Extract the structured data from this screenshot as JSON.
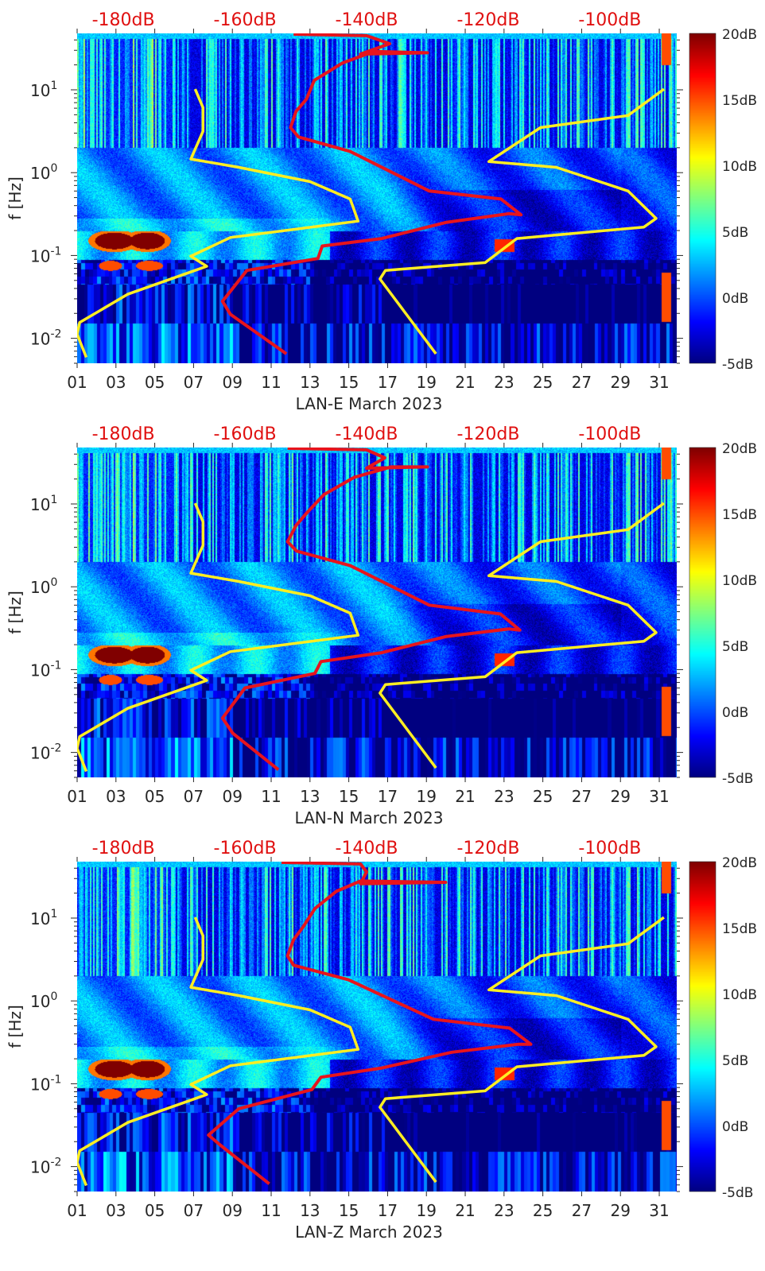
{
  "chart_data": {
    "type": "heatmap",
    "colormap": "jet",
    "color_limits_db": [
      -5,
      20
    ],
    "colorbar_ticks": [
      "20dB",
      "15dB",
      "10dB",
      "5dB",
      "0dB",
      "-5dB"
    ],
    "colorbar_values": [
      20,
      15,
      10,
      5,
      0,
      -5
    ],
    "x_day_range": [
      1,
      31.9
    ],
    "x_ticks": [
      "01",
      "03",
      "05",
      "07",
      "09",
      "11",
      "13",
      "15",
      "17",
      "19",
      "21",
      "23",
      "25",
      "27",
      "29",
      "31"
    ],
    "x_tick_values": [
      1,
      3,
      5,
      7,
      9,
      11,
      13,
      15,
      17,
      19,
      21,
      23,
      25,
      27,
      29,
      31
    ],
    "y_scale": "log",
    "y_range_hz": [
      0.005,
      48
    ],
    "y_label": "f [Hz]",
    "y_tick_values": [
      10,
      1,
      0.1,
      0.01
    ],
    "y_tick_base": "10",
    "y_tick_exponents": [
      "1",
      "0",
      "-1",
      "-2"
    ],
    "top_axis_db_range": [
      -187.6,
      -89
    ],
    "top_axis_labels": [
      "-180dB",
      "-160dB",
      "-140dB",
      "-120dB",
      "-100dB"
    ],
    "top_axis_values": [
      -180,
      -160,
      -140,
      -120,
      -100
    ],
    "line_colors": {
      "station_psd": "#e8141c",
      "noise_model": "#ffee22"
    },
    "panels": [
      {
        "xlabel": "LAN-E March 2023",
        "red_curve": [
          [
            -153.2,
            0.0065
          ],
          [
            -162.4,
            0.0195
          ],
          [
            -163.7,
            0.028
          ],
          [
            -159.7,
            0.066
          ],
          [
            -148,
            0.092
          ],
          [
            -147.3,
            0.13
          ],
          [
            -137.5,
            0.16
          ],
          [
            -127,
            0.25
          ],
          [
            -116.6,
            0.32
          ],
          [
            -114.6,
            0.31
          ],
          [
            -117.9,
            0.48
          ],
          [
            -129.7,
            0.6
          ],
          [
            -142.7,
            1.8
          ],
          [
            -151.2,
            2.7
          ],
          [
            -152.5,
            3.5
          ],
          [
            -151.6,
            5.5
          ],
          [
            -149.9,
            7.7
          ],
          [
            -148.6,
            13
          ],
          [
            -144,
            21
          ],
          [
            -138.8,
            29
          ],
          [
            -130,
            28
          ],
          [
            -141,
            27
          ],
          [
            -136.2,
            36
          ],
          [
            -140,
            45
          ],
          [
            -152,
            47
          ]
        ],
        "low_noise_model": [
          [
            -186.1,
            0.0059
          ],
          [
            -187.6,
            0.0112
          ],
          [
            -187.2,
            0.0155
          ],
          [
            -179.3,
            0.034
          ],
          [
            -166.3,
            0.074
          ],
          [
            -168.9,
            0.098
          ],
          [
            -162.4,
            0.165
          ],
          [
            -141.4,
            0.26
          ],
          [
            -142.7,
            0.48
          ],
          [
            -149.3,
            0.78
          ],
          [
            -161,
            1.16
          ],
          [
            -168.9,
            1.46
          ],
          [
            -166.9,
            3.16
          ],
          [
            -166.9,
            6.1
          ],
          [
            -168.2,
            10.2
          ]
        ],
        "high_noise_model": [
          [
            -128.6,
            0.0065
          ],
          [
            -137.8,
            0.052
          ],
          [
            -136.9,
            0.066
          ],
          [
            -120.5,
            0.082
          ],
          [
            -115.3,
            0.16
          ],
          [
            -94.4,
            0.22
          ],
          [
            -92.4,
            0.28
          ],
          [
            -97,
            0.6
          ],
          [
            -108.8,
            1.16
          ],
          [
            -119.9,
            1.36
          ],
          [
            -111.4,
            3.5
          ],
          [
            -97,
            4.9
          ],
          [
            -91.1,
            10.2
          ]
        ]
      },
      {
        "xlabel": "LAN-N March 2023",
        "red_curve": [
          [
            -154.5,
            0.0062
          ],
          [
            -162,
            0.017
          ],
          [
            -163.7,
            0.026
          ],
          [
            -160,
            0.06
          ],
          [
            -148.5,
            0.09
          ],
          [
            -147.5,
            0.125
          ],
          [
            -137.5,
            0.16
          ],
          [
            -127,
            0.25
          ],
          [
            -116.6,
            0.31
          ],
          [
            -114.8,
            0.3
          ],
          [
            -118,
            0.47
          ],
          [
            -129.7,
            0.6
          ],
          [
            -142.7,
            1.8
          ],
          [
            -151.5,
            2.7
          ],
          [
            -153,
            3.5
          ],
          [
            -151.6,
            5.5
          ],
          [
            -149.9,
            7.7
          ],
          [
            -147,
            13
          ],
          [
            -142,
            21
          ],
          [
            -136,
            28
          ],
          [
            -130,
            28
          ],
          [
            -140,
            27
          ],
          [
            -137,
            36
          ],
          [
            -140,
            45
          ],
          [
            -153,
            47
          ]
        ],
        "low_noise_model": [
          [
            -186.1,
            0.0059
          ],
          [
            -187.6,
            0.0112
          ],
          [
            -187.2,
            0.0155
          ],
          [
            -179.3,
            0.034
          ],
          [
            -166.3,
            0.074
          ],
          [
            -168.9,
            0.098
          ],
          [
            -162.4,
            0.165
          ],
          [
            -141.4,
            0.26
          ],
          [
            -142.7,
            0.48
          ],
          [
            -149.3,
            0.78
          ],
          [
            -161,
            1.16
          ],
          [
            -168.9,
            1.46
          ],
          [
            -166.9,
            3.16
          ],
          [
            -166.9,
            6.1
          ],
          [
            -168.2,
            10.2
          ]
        ],
        "high_noise_model": [
          [
            -128.6,
            0.0065
          ],
          [
            -137.8,
            0.052
          ],
          [
            -136.9,
            0.066
          ],
          [
            -120.5,
            0.082
          ],
          [
            -115.3,
            0.16
          ],
          [
            -94.4,
            0.22
          ],
          [
            -92.4,
            0.28
          ],
          [
            -97,
            0.6
          ],
          [
            -108.8,
            1.16
          ],
          [
            -119.9,
            1.36
          ],
          [
            -111.4,
            3.5
          ],
          [
            -97,
            4.9
          ],
          [
            -91.1,
            10.2
          ]
        ]
      },
      {
        "xlabel": "LAN-Z March 2023",
        "red_curve": [
          [
            -156,
            0.0062
          ],
          [
            -164,
            0.018
          ],
          [
            -166,
            0.024
          ],
          [
            -161,
            0.05
          ],
          [
            -149,
            0.085
          ],
          [
            -147.5,
            0.12
          ],
          [
            -137.5,
            0.155
          ],
          [
            -126,
            0.24
          ],
          [
            -115,
            0.3
          ],
          [
            -113,
            0.3
          ],
          [
            -116.5,
            0.47
          ],
          [
            -129,
            0.6
          ],
          [
            -143,
            1.8
          ],
          [
            -152,
            2.7
          ],
          [
            -153,
            3.5
          ],
          [
            -152,
            5.5
          ],
          [
            -150.5,
            7.7
          ],
          [
            -148.5,
            13
          ],
          [
            -145,
            21
          ],
          [
            -141,
            28
          ],
          [
            -127,
            27
          ],
          [
            -141,
            26
          ],
          [
            -140,
            36
          ],
          [
            -141,
            45
          ],
          [
            -154,
            47
          ]
        ],
        "low_noise_model": [
          [
            -186.1,
            0.0059
          ],
          [
            -187.6,
            0.0112
          ],
          [
            -187.2,
            0.0155
          ],
          [
            -179.3,
            0.034
          ],
          [
            -166.3,
            0.074
          ],
          [
            -168.9,
            0.098
          ],
          [
            -162.4,
            0.165
          ],
          [
            -141.4,
            0.26
          ],
          [
            -142.7,
            0.48
          ],
          [
            -149.3,
            0.78
          ],
          [
            -161,
            1.16
          ],
          [
            -168.9,
            1.46
          ],
          [
            -166.9,
            3.16
          ],
          [
            -166.9,
            6.1
          ],
          [
            -168.2,
            10.2
          ]
        ],
        "high_noise_model": [
          [
            -128.6,
            0.0065
          ],
          [
            -137.8,
            0.052
          ],
          [
            -136.9,
            0.066
          ],
          [
            -120.5,
            0.082
          ],
          [
            -115.3,
            0.16
          ],
          [
            -94.4,
            0.22
          ],
          [
            -92.4,
            0.28
          ],
          [
            -97,
            0.6
          ],
          [
            -108.8,
            1.16
          ],
          [
            -119.9,
            1.36
          ],
          [
            -111.4,
            3.5
          ],
          [
            -97,
            4.9
          ],
          [
            -91.1,
            10.2
          ]
        ]
      }
    ]
  }
}
